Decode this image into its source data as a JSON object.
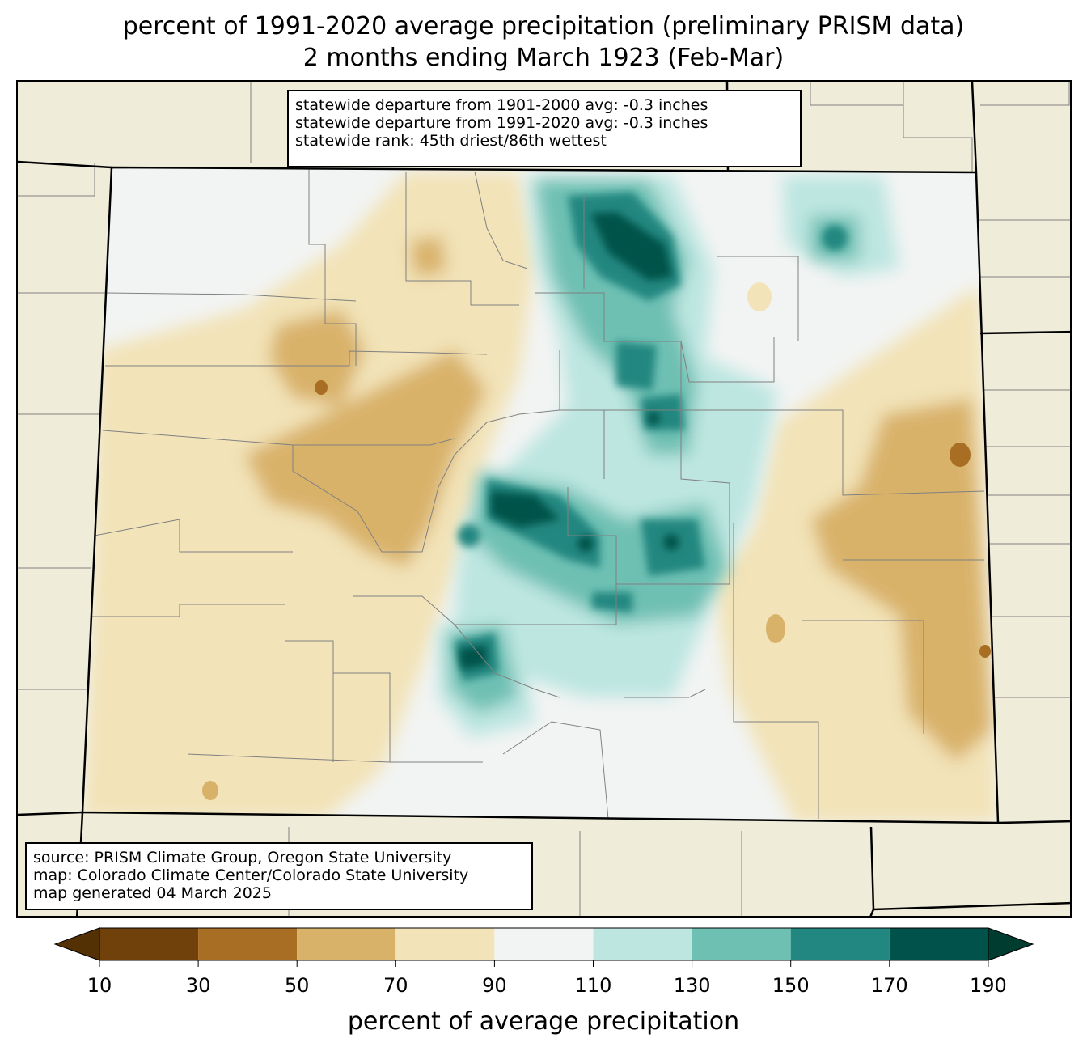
{
  "title": {
    "line1": "percent of 1991-2020 average precipitation (preliminary PRISM data)",
    "line2": "2 months ending March 1923 (Feb-Mar)"
  },
  "stats": {
    "line1": "statewide departure from 1901-2000 avg: -0.3 inches",
    "line2": "statewide departure from 1991-2020 avg: -0.3 inches",
    "line3": "statewide rank: 45th driest/86th wettest"
  },
  "source": {
    "line1": "source: PRISM Climate Group, Oregon State University",
    "line2": "map: Colorado Climate Center/Colorado State University",
    "line3": "map generated 04 March 2025"
  },
  "colorbar": {
    "label": "percent of average precipitation",
    "ticks": [
      "10",
      "30",
      "50",
      "70",
      "90",
      "110",
      "130",
      "150",
      "170",
      "190"
    ],
    "colors": {
      "lt10": "#543005",
      "b10_30": "#71410b",
      "b30_50": "#a86e24",
      "b50_70": "#d9b26a",
      "b70_90": "#f2e3b8",
      "b90_110": "#f2f4f3",
      "b110_130": "#bde6e1",
      "b130_150": "#6ec0b3",
      "b150_170": "#228780",
      "b170_190": "#01524a",
      "gt190": "#003c30"
    }
  },
  "map": {
    "outside_color": "#efedda",
    "county_line_color": "#808080"
  }
}
